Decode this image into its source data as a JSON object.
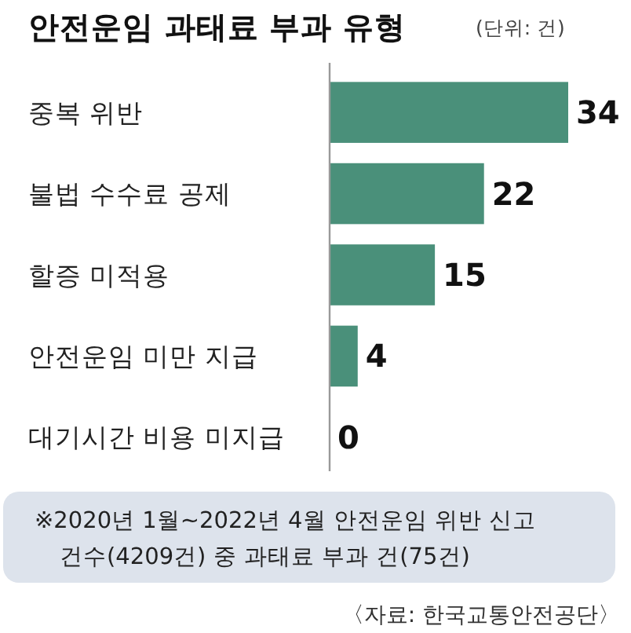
{
  "chart_data": {
    "type": "bar",
    "orientation": "horizontal",
    "title": "안전운임 과태료 부과 유형",
    "subtitle": "(단위: 건)",
    "categories": [
      "중복 위반",
      "불법 수수료 공제",
      "할증 미적용",
      "안전운임 미만 지급",
      "대기시간 비용 미지급"
    ],
    "values": [
      34,
      22,
      15,
      4,
      0
    ],
    "color": "#4a907a",
    "data_labels": true,
    "annotations": [
      "※2020년 1월~2022년 4월 안전운임 위반 신고\n건수(4209건) 중 과태료 부과 건(75건)",
      "〈자료: 한국교통안전공단〉"
    ]
  }
}
